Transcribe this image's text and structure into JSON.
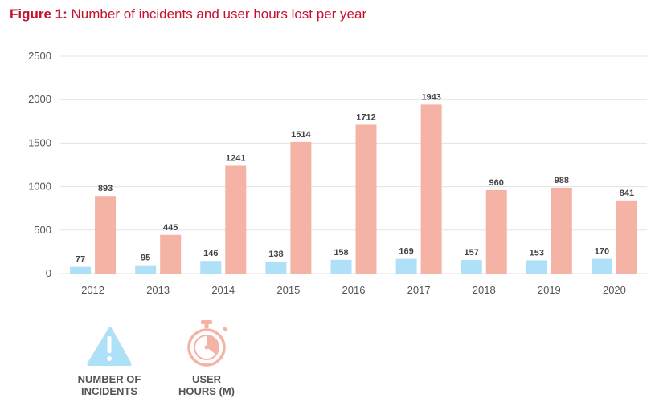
{
  "figure": {
    "label": "Figure 1:",
    "title": "Number of incidents and user hours lost per year"
  },
  "colors": {
    "title": "#c8102e",
    "incidents": "#aee0f8",
    "hours": "#f5b3a6",
    "grid": "#e3e3e3",
    "incidents_icon": "#aee0f8",
    "hours_icon": "#f5b3a6"
  },
  "chart_data": {
    "type": "bar",
    "categories": [
      "2012",
      "2013",
      "2014",
      "2015",
      "2016",
      "2017",
      "2018",
      "2019",
      "2020"
    ],
    "series": [
      {
        "name": "NUMBER OF INCIDENTS",
        "values": [
          77,
          95,
          146,
          138,
          158,
          169,
          157,
          153,
          170
        ]
      },
      {
        "name": "USER HOURS (M)",
        "values": [
          893,
          445,
          1241,
          1514,
          1712,
          1943,
          960,
          988,
          841
        ]
      }
    ],
    "ylim": [
      0,
      2500
    ],
    "yticks": [
      0,
      500,
      1000,
      1500,
      2000,
      2500
    ],
    "grid": true,
    "legend_placement": "bottom-left"
  },
  "legend": [
    {
      "icon": "warning-triangle-icon",
      "line1": "NUMBER OF",
      "line2": "INCIDENTS"
    },
    {
      "icon": "stopwatch-icon",
      "line1": "USER",
      "line2": "HOURS (M)"
    }
  ]
}
